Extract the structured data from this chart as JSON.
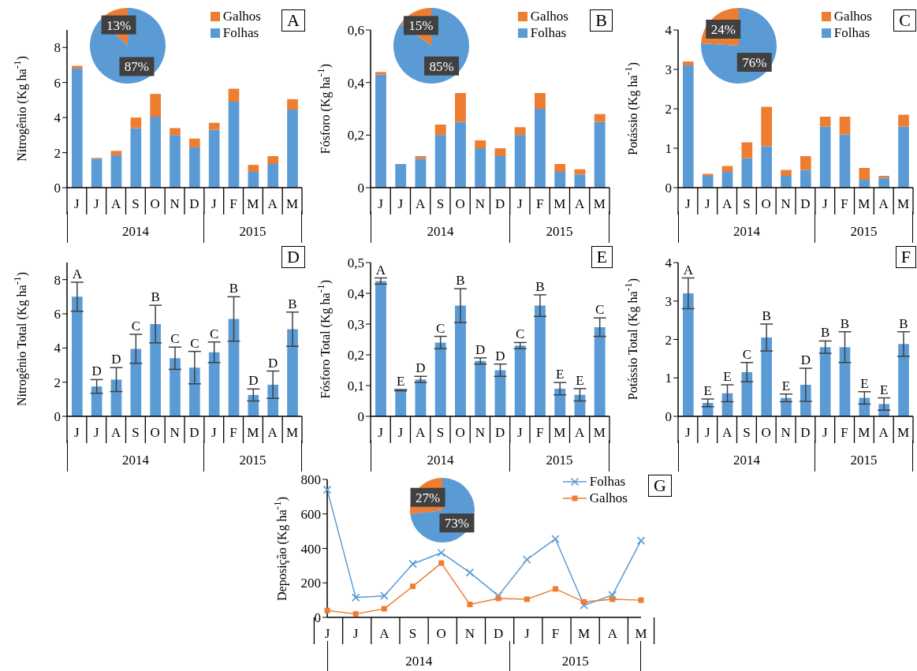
{
  "chart_data": [
    {
      "type": "bar",
      "title": "A",
      "ylabel": "Nitrogênio (Kg ha$^{-1}$)",
      "categories": [
        "J",
        "J",
        "A",
        "S",
        "O",
        "N",
        "D",
        "J",
        "F",
        "M",
        "A",
        "M"
      ],
      "stacked": true,
      "legend": "top right",
      "ylim": [
        0,
        9
      ],
      "yticks": [
        0,
        2,
        4,
        6,
        8
      ],
      "annotations": [
        "2014",
        "2015"
      ],
      "series": [
        {
          "name": "Folhas",
          "color": "#5b9bd5",
          "values": [
            6.8,
            1.65,
            1.85,
            3.4,
            4.05,
            3.0,
            2.3,
            3.3,
            4.9,
            0.9,
            1.35,
            4.45
          ]
        },
        {
          "name": "Galhos",
          "color": "#ed7d31",
          "values": [
            0.15,
            0.05,
            0.25,
            0.6,
            1.3,
            0.4,
            0.5,
            0.4,
            0.75,
            0.4,
            0.45,
            0.6
          ]
        }
      ]
    },
    {
      "type": "pie",
      "categories": [
        null,
        null
      ],
      "values": [
        13,
        87
      ],
      "colors": [
        "#ed7d31",
        "#5b9bd5"
      ],
      "value_labels": [
        "13%",
        "87%"
      ]
    },
    {
      "type": "bar",
      "title": "B",
      "ylabel": "Fósforo (Kg ha$^{-1}$)",
      "categories": [
        "J",
        "J",
        "A",
        "S",
        "O",
        "N",
        "D",
        "J",
        "F",
        "M",
        "A",
        "M"
      ],
      "stacked": true,
      "legend": "top right",
      "ylim": [
        0,
        0.6
      ],
      "yticks": [
        0,
        {
          "value": 0.2,
          "label": "0,2"
        },
        {
          "value": 0.4,
          "label": "0,4"
        },
        {
          "value": 0.6,
          "label": "0,6"
        }
      ],
      "annotations": [
        "2014",
        "2015"
      ],
      "series": [
        {
          "name": "Folhas",
          "color": "#5b9bd5",
          "values": [
            0.43,
            0.09,
            0.11,
            0.2,
            0.25,
            0.15,
            0.12,
            0.2,
            0.3,
            0.06,
            0.05,
            0.25
          ]
        },
        {
          "name": "Galhos",
          "color": "#ed7d31",
          "values": [
            0.01,
            0,
            0.01,
            0.04,
            0.11,
            0.03,
            0.03,
            0.03,
            0.06,
            0.03,
            0.02,
            0.03
          ]
        }
      ]
    },
    {
      "type": "pie",
      "categories": [
        null,
        null
      ],
      "values": [
        15,
        85
      ],
      "colors": [
        "#ed7d31",
        "#5b9bd5"
      ],
      "value_labels": [
        "15%",
        "85%"
      ]
    },
    {
      "type": "bar",
      "title": "C",
      "ylabel": "Potássio (Kg ha$^{-1}$)",
      "categories": [
        "J",
        "J",
        "A",
        "S",
        "O",
        "N",
        "D",
        "J",
        "F",
        "M",
        "A",
        "M"
      ],
      "stacked": true,
      "legend": "top right",
      "ylim": [
        0,
        4
      ],
      "yticks": [
        0,
        1,
        2,
        3,
        4
      ],
      "annotations": [
        "2014",
        "2015"
      ],
      "series": [
        {
          "name": "Folhas",
          "color": "#5b9bd5",
          "values": [
            3.1,
            0.3,
            0.4,
            0.75,
            1.05,
            0.3,
            0.45,
            1.55,
            1.35,
            0.2,
            0.25,
            1.55
          ]
        },
        {
          "name": "Galhos",
          "color": "#ed7d31",
          "values": [
            0.1,
            0.05,
            0.15,
            0.4,
            1.0,
            0.15,
            0.35,
            0.25,
            0.45,
            0.3,
            0.05,
            0.3
          ]
        }
      ]
    },
    {
      "type": "pie",
      "categories": [
        null,
        null
      ],
      "values": [
        24,
        76
      ],
      "colors": [
        "#ed7d31",
        "#5b9bd5"
      ],
      "value_labels": [
        "24%",
        "76%"
      ]
    },
    {
      "type": "bar",
      "title": "D",
      "ylabel": "Nitrogênio Total (Kg ha$^{-1}$)",
      "categories": [
        "J",
        "J",
        "A",
        "S",
        "O",
        "N",
        "D",
        "J",
        "F",
        "M",
        "A",
        "M"
      ],
      "ylim": [
        0,
        9
      ],
      "yticks": [
        0,
        2,
        4,
        6,
        8
      ],
      "annotations": [
        "2014",
        "2015"
      ],
      "color": "#5b9bd5",
      "values": [
        7.0,
        1.75,
        2.15,
        3.95,
        5.4,
        3.4,
        2.85,
        3.75,
        5.7,
        1.25,
        1.85,
        5.1
      ],
      "errors": [
        0.85,
        0.4,
        0.7,
        0.85,
        1.1,
        0.65,
        0.95,
        0.6,
        1.3,
        0.35,
        0.8,
        1.0
      ],
      "value_labels": [
        "A",
        "D",
        "D",
        "C",
        "B",
        "C",
        "C",
        "C",
        "B",
        "D",
        "D",
        "B"
      ]
    },
    {
      "type": "bar",
      "title": "E",
      "ylabel": "Fósforo Total (Kg ha$^{-1}$)",
      "categories": [
        "J",
        "J",
        "A",
        "S",
        "O",
        "N",
        "D",
        "J",
        "F",
        "M",
        "A",
        "M"
      ],
      "ylim": [
        0,
        0.5
      ],
      "yticks": [
        0,
        {
          "value": 0.1,
          "label": "0,1"
        },
        {
          "value": 0.2,
          "label": "0,2"
        },
        {
          "value": 0.3,
          "label": "0,3"
        },
        {
          "value": 0.4,
          "label": "0,4"
        },
        {
          "value": 0.5,
          "label": "0,5"
        }
      ],
      "annotations": [
        "2014",
        "2015"
      ],
      "color": "#5b9bd5",
      "values": [
        0.44,
        0.085,
        0.12,
        0.24,
        0.36,
        0.18,
        0.15,
        0.23,
        0.36,
        0.09,
        0.07,
        0.29
      ],
      "errors": [
        0.01,
        0.002,
        0.01,
        0.02,
        0.055,
        0.01,
        0.02,
        0.01,
        0.035,
        0.02,
        0.02,
        0.03
      ],
      "value_labels": [
        "A",
        "E",
        "D",
        "C",
        "B",
        "D",
        "D",
        "C",
        "B",
        "E",
        "E",
        "C"
      ]
    },
    {
      "type": "bar",
      "title": "F",
      "ylabel": "Potássio Total (Kg ha$^{-1}$)",
      "categories": [
        "J",
        "J",
        "A",
        "S",
        "O",
        "N",
        "D",
        "J",
        "F",
        "M",
        "A",
        "M"
      ],
      "ylim": [
        0,
        4
      ],
      "yticks": [
        0,
        1,
        2,
        3,
        4
      ],
      "annotations": [
        "2014",
        "2015"
      ],
      "color": "#5b9bd5",
      "values": [
        3.2,
        0.35,
        0.6,
        1.15,
        2.05,
        0.48,
        0.82,
        1.8,
        1.8,
        0.48,
        0.32,
        1.88
      ],
      "errors": [
        0.4,
        0.1,
        0.22,
        0.25,
        0.35,
        0.1,
        0.43,
        0.16,
        0.4,
        0.16,
        0.16,
        0.32
      ],
      "value_labels": [
        "A",
        "E",
        "E",
        "C",
        "B",
        "E",
        "D",
        "B",
        "B",
        "E",
        "E",
        "B"
      ]
    },
    {
      "type": "line",
      "title": "G",
      "ylabel": "Deposição (Kg ha$^{-1}$)",
      "categories": [
        "J",
        "J",
        "A",
        "S",
        "O",
        "N",
        "D",
        "J",
        "F",
        "M",
        "A",
        "M"
      ],
      "legend": "top right",
      "ylim": [
        0,
        800
      ],
      "yticks": [
        0,
        200,
        400,
        600,
        800
      ],
      "annotations": [
        "2014",
        "2015"
      ],
      "series": [
        {
          "name": "Folhas",
          "color": "#5b9bd5",
          "marker": "cross",
          "values": [
            740,
            115,
            125,
            310,
            375,
            260,
            125,
            335,
            455,
            70,
            130,
            445
          ]
        },
        {
          "name": "Galhos",
          "color": "#ed7d31",
          "marker": "square",
          "values": [
            40,
            20,
            50,
            180,
            315,
            75,
            110,
            105,
            165,
            90,
            105,
            100
          ]
        }
      ]
    },
    {
      "type": "pie",
      "categories": [
        null,
        null
      ],
      "values": [
        27,
        73
      ],
      "colors": [
        "#ed7d31",
        "#5b9bd5"
      ],
      "value_labels": [
        "27%",
        "73%"
      ]
    }
  ]
}
